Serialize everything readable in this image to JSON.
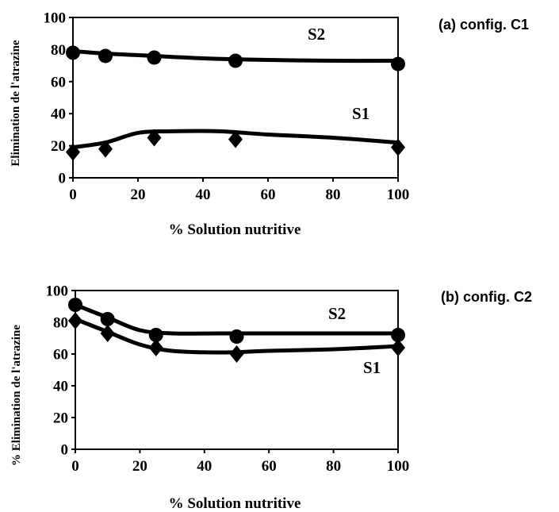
{
  "chart_data": [
    {
      "type": "line",
      "panel_label": "(a) config. C1",
      "xlabel": "% Solution nutritive",
      "ylabel": "Elimination de l'atrazine",
      "xlim": [
        0,
        100
      ],
      "ylim": [
        0,
        100
      ],
      "xticks": [
        "0",
        "20",
        "40",
        "60",
        "80",
        "100"
      ],
      "yticks": [
        "0",
        "20",
        "40",
        "60",
        "80",
        "100"
      ],
      "series": [
        {
          "name": "S2",
          "marker": "circle",
          "points": [
            [
              0,
              78
            ],
            [
              10,
              76
            ],
            [
              25,
              75
            ],
            [
              50,
              73
            ],
            [
              100,
              71
            ]
          ],
          "curve": [
            [
              0,
              79
            ],
            [
              10,
              77.5
            ],
            [
              25,
              76
            ],
            [
              40,
              74.5
            ],
            [
              60,
              73.5
            ],
            [
              80,
              73
            ],
            [
              100,
              73
            ]
          ]
        },
        {
          "name": "S1",
          "marker": "diamond",
          "points": [
            [
              0,
              16
            ],
            [
              10,
              18
            ],
            [
              25,
              25
            ],
            [
              50,
              24
            ],
            [
              100,
              19
            ]
          ],
          "curve": [
            [
              0,
              19
            ],
            [
              10,
              22
            ],
            [
              20,
              28
            ],
            [
              30,
              29
            ],
            [
              45,
              29
            ],
            [
              60,
              27
            ],
            [
              80,
              25
            ],
            [
              100,
              22
            ]
          ]
        }
      ]
    },
    {
      "type": "line",
      "panel_label": "(b) config. C2",
      "xlabel": "% Solution nutritive",
      "ylabel": "% Elimination de l'atrazine",
      "xlim": [
        0,
        100
      ],
      "ylim": [
        0,
        100
      ],
      "xticks": [
        "0",
        "20",
        "40",
        "60",
        "80",
        "100"
      ],
      "yticks": [
        "0",
        "20",
        "40",
        "60",
        "80",
        "100"
      ],
      "series": [
        {
          "name": "S2",
          "marker": "circle",
          "points": [
            [
              0,
              91
            ],
            [
              10,
              82
            ],
            [
              25,
              72
            ],
            [
              50,
              71
            ],
            [
              100,
              72
            ]
          ],
          "curve": [
            [
              0,
              91
            ],
            [
              10,
              83
            ],
            [
              20,
              75
            ],
            [
              30,
              73
            ],
            [
              45,
              73
            ],
            [
              60,
              73
            ],
            [
              80,
              73
            ],
            [
              100,
              73
            ]
          ]
        },
        {
          "name": "S1",
          "marker": "diamond",
          "points": [
            [
              0,
              81
            ],
            [
              10,
              73
            ],
            [
              25,
              64
            ],
            [
              50,
              60
            ],
            [
              100,
              64
            ]
          ],
          "curve": [
            [
              0,
              82
            ],
            [
              10,
              74
            ],
            [
              20,
              66
            ],
            [
              30,
              62
            ],
            [
              45,
              61
            ],
            [
              60,
              62
            ],
            [
              80,
              63
            ],
            [
              100,
              65
            ]
          ]
        }
      ]
    }
  ]
}
